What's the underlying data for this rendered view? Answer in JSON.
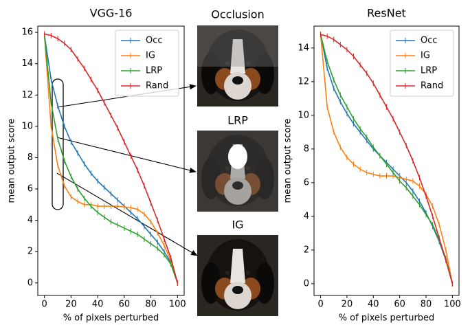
{
  "chart_data": [
    {
      "type": "line",
      "title": "VGG-16",
      "x_label": "% of pixels perturbed",
      "y_label": "mean output score",
      "x": [
        0,
        5,
        10,
        15,
        20,
        25,
        30,
        35,
        40,
        45,
        50,
        55,
        60,
        65,
        70,
        75,
        80,
        85,
        90,
        95,
        100
      ],
      "series": [
        {
          "name": "Occ",
          "color": "#1f77b4",
          "values": [
            15.8,
            13,
            11.3,
            10,
            9,
            8.3,
            7.6,
            7,
            6.5,
            6.1,
            5.7,
            5.3,
            4.9,
            4.5,
            4.1,
            3.6,
            3.1,
            2.6,
            2,
            1.3,
            0
          ]
        },
        {
          "name": "IG",
          "color": "#ff7f0e",
          "values": [
            15.8,
            10,
            7.5,
            6.2,
            5.5,
            5.2,
            5,
            5,
            4.9,
            4.9,
            4.9,
            4.9,
            4.85,
            4.8,
            4.7,
            4.4,
            3.9,
            3.2,
            2.4,
            1.4,
            0
          ]
        },
        {
          "name": "LRP",
          "color": "#2ca02c",
          "values": [
            15.8,
            11.5,
            9.2,
            7.8,
            6.8,
            6,
            5.4,
            4.9,
            4.5,
            4.2,
            3.9,
            3.7,
            3.5,
            3.3,
            3.1,
            2.8,
            2.5,
            2.2,
            1.8,
            1.2,
            0
          ]
        },
        {
          "name": "Rand",
          "color": "#d62728",
          "values": [
            15.9,
            15.8,
            15.6,
            15.3,
            14.9,
            14.3,
            13.7,
            13,
            12.3,
            11.5,
            10.7,
            9.9,
            9,
            8.1,
            7.2,
            6.2,
            5.1,
            4,
            2.8,
            1.6,
            0
          ]
        }
      ],
      "xlim": [
        -5,
        105
      ],
      "ylim": [
        -0.8,
        16.4
      ],
      "xticks": [
        0,
        20,
        40,
        60,
        80,
        100
      ],
      "yticks": [
        0,
        2,
        4,
        6,
        8,
        10,
        12,
        14,
        16
      ],
      "legend": "upper right"
    },
    {
      "type": "line",
      "title": "ResNet",
      "x_label": "% of pixels perturbed",
      "y_label": "mean output score",
      "x": [
        0,
        5,
        10,
        15,
        20,
        25,
        30,
        35,
        40,
        45,
        50,
        55,
        60,
        65,
        70,
        75,
        80,
        85,
        90,
        95,
        100
      ],
      "series": [
        {
          "name": "Occ",
          "color": "#1f77b4",
          "values": [
            14.8,
            12.8,
            11.6,
            10.8,
            10.1,
            9.5,
            9,
            8.5,
            8,
            7.6,
            7.2,
            6.8,
            6.4,
            6,
            5.5,
            4.9,
            4.2,
            3.4,
            2.5,
            1.4,
            0
          ]
        },
        {
          "name": "IG",
          "color": "#ff7f0e",
          "values": [
            14.8,
            10.5,
            9,
            8.1,
            7.5,
            7.1,
            6.8,
            6.6,
            6.5,
            6.4,
            6.4,
            6.4,
            6.3,
            6.2,
            6.1,
            5.8,
            5.3,
            4.6,
            3.5,
            2,
            0
          ]
        },
        {
          "name": "LRP",
          "color": "#2ca02c",
          "values": [
            14.8,
            13.2,
            12.1,
            11.2,
            10.5,
            9.8,
            9.2,
            8.7,
            8.1,
            7.6,
            7.1,
            6.6,
            6.1,
            5.7,
            5.2,
            4.7,
            4.1,
            3.5,
            2.6,
            1.5,
            0
          ]
        },
        {
          "name": "Rand",
          "color": "#d62728",
          "values": [
            14.8,
            14.7,
            14.5,
            14.2,
            13.9,
            13.5,
            13,
            12.5,
            11.9,
            11.2,
            10.5,
            9.8,
            9,
            8.2,
            7.3,
            6.3,
            5.2,
            4,
            2.7,
            1.4,
            0
          ]
        }
      ],
      "xlim": [
        -5,
        105
      ],
      "ylim": [
        -0.7,
        15.3
      ],
      "xticks": [
        0,
        20,
        40,
        60,
        80,
        100
      ],
      "yticks": [
        0,
        2,
        4,
        6,
        8,
        10,
        12,
        14
      ],
      "legend": "upper right"
    }
  ],
  "images": [
    {
      "title": "Occlusion"
    },
    {
      "title": "LRP"
    },
    {
      "title": "IG"
    }
  ]
}
